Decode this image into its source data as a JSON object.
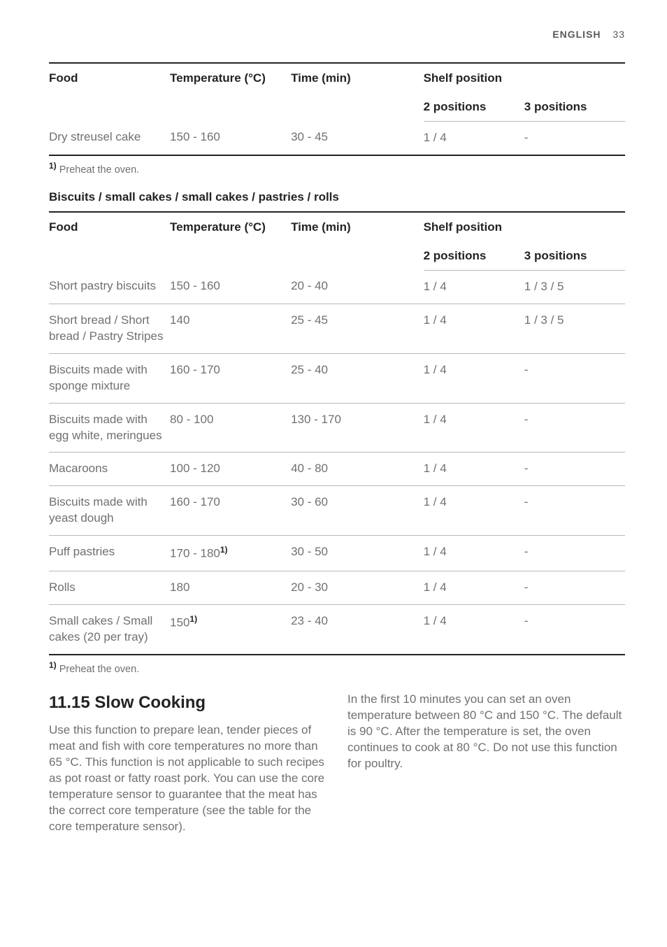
{
  "header": {
    "language": "ENGLISH",
    "page_number": "33"
  },
  "table1": {
    "columns": {
      "food": "Food",
      "temp": "Temperature (°C)",
      "time": "Time (min)",
      "shelf": "Shelf position",
      "pos2": "2 positions",
      "pos3": "3 positions"
    },
    "rows": [
      {
        "food": "Dry streusel cake",
        "temp": "150 - 160",
        "time": "30 - 45",
        "pos2": "1 / 4",
        "pos3": "-"
      }
    ],
    "footnote_ref": "1)",
    "footnote_text": " Preheat the oven."
  },
  "section2_title": "Biscuits / small cakes / small cakes / pastries / rolls",
  "table2": {
    "columns": {
      "food": "Food",
      "temp": "Temperature (°C)",
      "time": "Time (min)",
      "shelf": "Shelf position",
      "pos2": "2 positions",
      "pos3": "3 positions"
    },
    "rows": [
      {
        "food": "Short pastry biscuits",
        "temp": "150 - 160",
        "sup": "",
        "time": "20 - 40",
        "pos2": "1 / 4",
        "pos3": "1 / 3 / 5"
      },
      {
        "food": "Short bread / Short bread / Pastry Stripes",
        "temp": "140",
        "sup": "",
        "time": "25 - 45",
        "pos2": "1 / 4",
        "pos3": "1 / 3 / 5"
      },
      {
        "food": "Biscuits made with sponge mixture",
        "temp": "160 - 170",
        "sup": "",
        "time": "25 - 40",
        "pos2": "1 / 4",
        "pos3": "-"
      },
      {
        "food": "Biscuits made with egg white, meringues",
        "temp": "80 - 100",
        "sup": "",
        "time": "130 - 170",
        "pos2": "1 / 4",
        "pos3": "-"
      },
      {
        "food": "Macaroons",
        "temp": "100 - 120",
        "sup": "",
        "time": "40 - 80",
        "pos2": "1 / 4",
        "pos3": "-"
      },
      {
        "food": "Biscuits made with yeast dough",
        "temp": "160 - 170",
        "sup": "",
        "time": "30 - 60",
        "pos2": "1 / 4",
        "pos3": "-"
      },
      {
        "food": "Puff pastries",
        "temp": "170 - 180",
        "sup": "1)",
        "time": "30 - 50",
        "pos2": "1 / 4",
        "pos3": "-"
      },
      {
        "food": "Rolls",
        "temp": "180",
        "sup": "",
        "time": "20 - 30",
        "pos2": "1 / 4",
        "pos3": "-"
      },
      {
        "food": "Small cakes / Small cakes (20 per tray)",
        "temp": "150",
        "sup": "1)",
        "time": "23 - 40",
        "pos2": "1 / 4",
        "pos3": "-"
      }
    ],
    "footnote_ref": "1)",
    "footnote_text": " Preheat the oven."
  },
  "slow_cooking": {
    "num": "11.15",
    "title": " Slow Cooking",
    "para1": "Use this function to prepare lean, tender pieces of meat and fish with core temperatures no more than 65 °C. This function is not applicable to such recipes as pot roast or fatty roast pork. You can use the core temperature sensor to guarantee that the meat has the correct core temperature (see the table for the core temperature sensor).",
    "para2": "In the first 10 minutes you can set an oven temperature between 80 °C and 150 °C. The default is 90 °C. After the temperature is set, the oven continues to cook at 80 °C. Do not use this function for poultry."
  }
}
